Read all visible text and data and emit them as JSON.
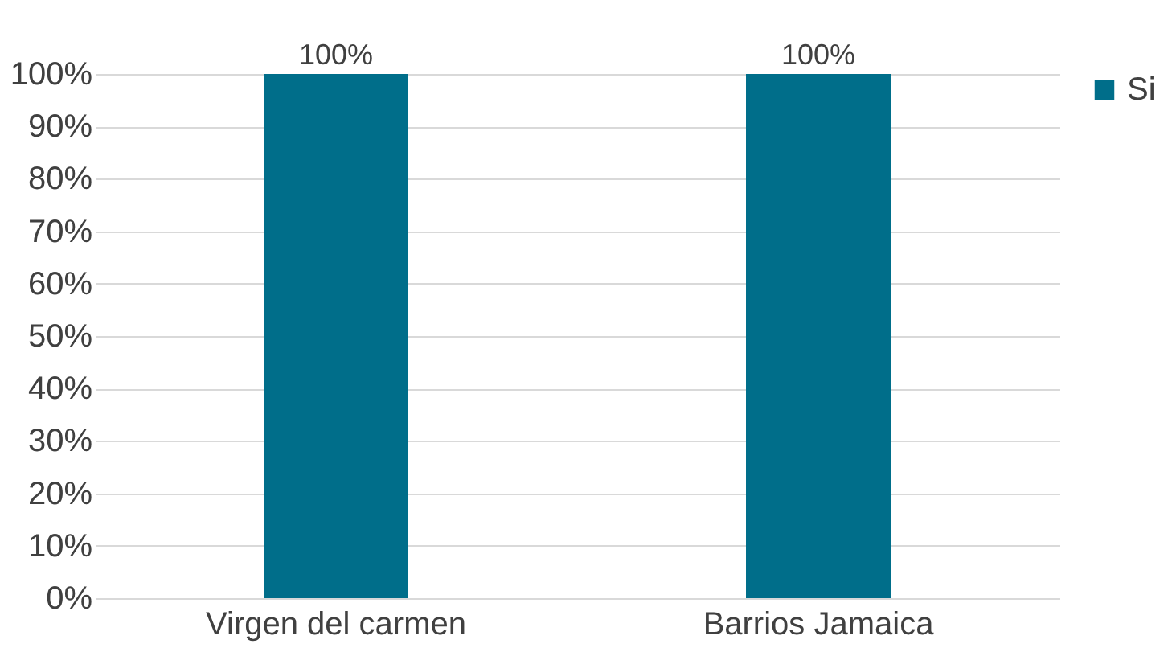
{
  "chart_data": {
    "type": "bar",
    "categories": [
      "Virgen del carmen",
      "Barrios Jamaica"
    ],
    "series": [
      {
        "name": "Si",
        "color": "#006e8a",
        "values": [
          100,
          100
        ]
      }
    ],
    "value_labels": [
      "100%",
      "100%"
    ],
    "ylim": [
      0,
      100
    ],
    "yticks": [
      {
        "value": 0,
        "label": "0%"
      },
      {
        "value": 10,
        "label": "10%"
      },
      {
        "value": 20,
        "label": "20%"
      },
      {
        "value": 30,
        "label": "30%"
      },
      {
        "value": 40,
        "label": "40%"
      },
      {
        "value": 50,
        "label": "50%"
      },
      {
        "value": 60,
        "label": "60%"
      },
      {
        "value": 70,
        "label": "70%"
      },
      {
        "value": 80,
        "label": "80%"
      },
      {
        "value": 90,
        "label": "90%"
      },
      {
        "value": 100,
        "label": "100%"
      }
    ],
    "grid": "y",
    "legend": "right"
  }
}
